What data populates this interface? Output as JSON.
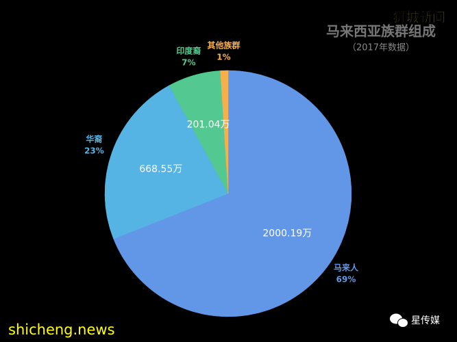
{
  "chart_data": {
    "type": "pie",
    "title": "马来西亚族群组成",
    "subtitle": "（2017年数据）",
    "categories": [
      "马来人",
      "华裔",
      "印度裔",
      "其他族群"
    ],
    "values": [
      2000.19,
      668.55,
      201.04,
      29
    ],
    "value_labels": [
      "2000.19万",
      "668.55万",
      "201.04万",
      null
    ],
    "percents": [
      69,
      23,
      7,
      1
    ],
    "percent_labels": [
      "69%",
      "23%",
      "7%",
      "1%"
    ],
    "colors": [
      "#6197e6",
      "#56b4e4",
      "#53c890",
      "#f5b04d"
    ]
  },
  "brand": {
    "top": "狮城新闻",
    "bottom_left": "shicheng.news",
    "bottom_right": "星传媒"
  }
}
